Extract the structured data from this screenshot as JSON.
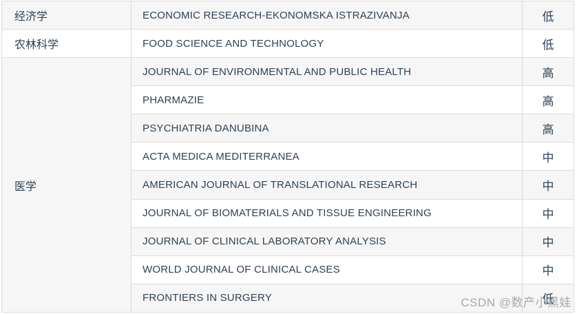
{
  "watermark": "CSDN @数产小黑娃",
  "colors": {
    "text": "#2f4154",
    "border": "#dcdcdc",
    "stripe_row": "#f6f6f6",
    "watermark": "#969ca3"
  },
  "table": {
    "columns": [
      "category",
      "journal_name",
      "risk_level"
    ],
    "categories": [
      {
        "label": "经济学",
        "rowspan": 1
      },
      {
        "label": "农林科学",
        "rowspan": 1
      },
      {
        "label": "医学",
        "rowspan": 9
      }
    ],
    "rows": [
      {
        "category": "经济学",
        "journal": "ECONOMIC RESEARCH-EKONOMSKA ISTRAZIVANJA",
        "level": "低"
      },
      {
        "category": "农林科学",
        "journal": "FOOD SCIENCE AND TECHNOLOGY",
        "level": "低"
      },
      {
        "category": "医学",
        "journal": "JOURNAL OF ENVIRONMENTAL AND PUBLIC HEALTH",
        "level": "高"
      },
      {
        "category": "医学",
        "journal": "PHARMAZIE",
        "level": "高"
      },
      {
        "category": "医学",
        "journal": "PSYCHIATRIA DANUBINA",
        "level": "高"
      },
      {
        "category": "医学",
        "journal": "ACTA MEDICA MEDITERRANEA",
        "level": "中"
      },
      {
        "category": "医学",
        "journal": "AMERICAN JOURNAL OF TRANSLATIONAL RESEARCH",
        "level": "中"
      },
      {
        "category": "医学",
        "journal": "JOURNAL OF BIOMATERIALS AND TISSUE ENGINEERING",
        "level": "中"
      },
      {
        "category": "医学",
        "journal": "JOURNAL OF CLINICAL LABORATORY ANALYSIS",
        "level": "中"
      },
      {
        "category": "医学",
        "journal": "WORLD JOURNAL OF CLINICAL CASES",
        "level": "中"
      },
      {
        "category": "医学",
        "journal": "FRONTIERS IN SURGERY",
        "level": "低"
      }
    ]
  }
}
